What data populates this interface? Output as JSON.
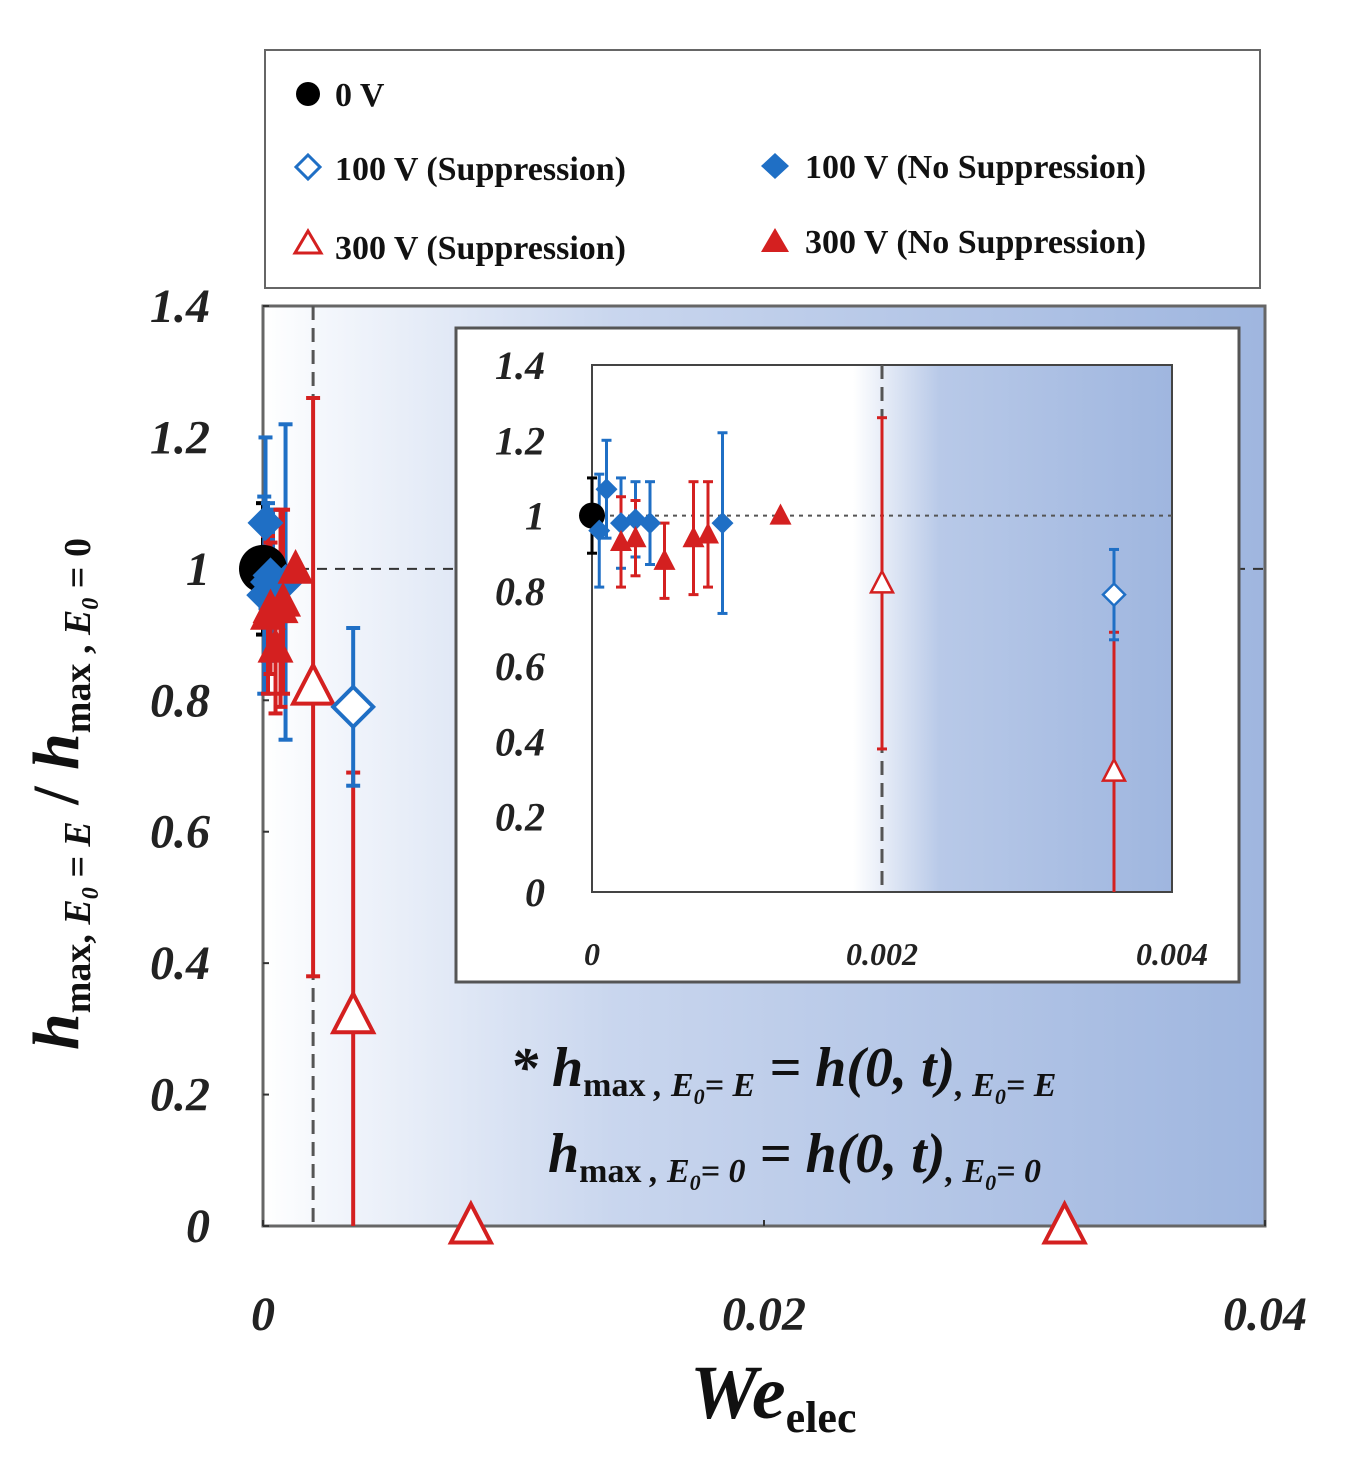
{
  "chart_data": {
    "type": "scatter",
    "xlabel": {
      "main": "We",
      "sub": "elec"
    },
    "ylabel": {
      "parts": [
        "h",
        "max, ",
        "E",
        "0",
        " = E",
        " / ",
        "h",
        "max",
        " , ",
        "E",
        "0",
        " = 0"
      ]
    },
    "xlim": [
      0,
      0.04
    ],
    "ylim": [
      0,
      1.4
    ],
    "x_ticks": [
      "0",
      "0.02",
      "0.04"
    ],
    "y_ticks": [
      "0",
      "0.2",
      "0.4",
      "0.6",
      "0.8",
      "1",
      "1.2",
      "1.4"
    ],
    "reference_line_y": 1,
    "threshold_x": 0.002,
    "legend": [
      {
        "label": "0 V",
        "marker": "circle-filled",
        "color": "#000000"
      },
      {
        "label": "100 V (Suppression)",
        "marker": "diamond-open",
        "color": "#1f6fc5"
      },
      {
        "label": "100 V (No Suppression)",
        "marker": "diamond-filled",
        "color": "#1f6fc5"
      },
      {
        "label": "300 V (Suppression)",
        "marker": "triangle-open",
        "color": "#d42020"
      },
      {
        "label": "300 V (No Suppression)",
        "marker": "triangle-filled",
        "color": "#d42020"
      }
    ],
    "series": [
      {
        "name": "0 V",
        "points": [
          {
            "x": 0,
            "y": 1,
            "err": 0.1
          }
        ]
      },
      {
        "name": "100 V (No Suppression)",
        "points": [
          {
            "x": 5e-05,
            "y": 0.96,
            "err": 0.15
          },
          {
            "x": 0.0001,
            "y": 1.07,
            "err": 0.13
          },
          {
            "x": 0.0002,
            "y": 0.98,
            "err": 0.12
          },
          {
            "x": 0.0003,
            "y": 0.99,
            "err": 0.1
          },
          {
            "x": 0.0004,
            "y": 0.98,
            "err": 0.11
          },
          {
            "x": 0.0009,
            "y": 0.98,
            "err": 0.24
          }
        ]
      },
      {
        "name": "300 V (No Suppression)",
        "points": [
          {
            "x": 0.0002,
            "y": 0.93,
            "err": 0.12
          },
          {
            "x": 0.0003,
            "y": 0.94,
            "err": 0.1
          },
          {
            "x": 0.0005,
            "y": 0.88,
            "err": 0.1
          },
          {
            "x": 0.0007,
            "y": 0.94,
            "err": 0.15
          },
          {
            "x": 0.0008,
            "y": 0.95,
            "err": 0.14
          },
          {
            "x": 0.0013,
            "y": 1.0,
            "err": 0.0
          }
        ]
      },
      {
        "name": "300 V (Suppression)",
        "points": [
          {
            "x": 0.002,
            "y": 0.82,
            "err": 0.44
          },
          {
            "x": 0.0036,
            "y": 0.32,
            "err": 0.37
          },
          {
            "x": 0.0083,
            "y": 0.0,
            "err": 0
          },
          {
            "x": 0.032,
            "y": 0.0,
            "err": 0
          }
        ]
      },
      {
        "name": "100 V (Suppression)",
        "points": [
          {
            "x": 0.0036,
            "y": 0.79,
            "err": 0.12
          }
        ]
      }
    ],
    "inset": {
      "xlim": [
        0,
        0.004
      ],
      "ylim": [
        0,
        1.4
      ],
      "x_ticks": [
        "0",
        "0.002",
        "0.004"
      ],
      "y_ticks": [
        "0",
        "0.2",
        "0.4",
        "0.6",
        "0.8",
        "1",
        "1.2",
        "1.4"
      ]
    },
    "annotation": {
      "line1": [
        "* h",
        "max",
        " , E",
        "0",
        "= E",
        " = h(0, t)",
        ", E",
        "0",
        "= E"
      ],
      "line2": [
        "h",
        "max",
        " , E",
        "0",
        "= 0",
        " = h(0, t)",
        ", E",
        "0",
        "= 0"
      ]
    },
    "colors": {
      "blue": "#1f6fc5",
      "red": "#d42020",
      "shade": "#a9bfe2"
    }
  }
}
